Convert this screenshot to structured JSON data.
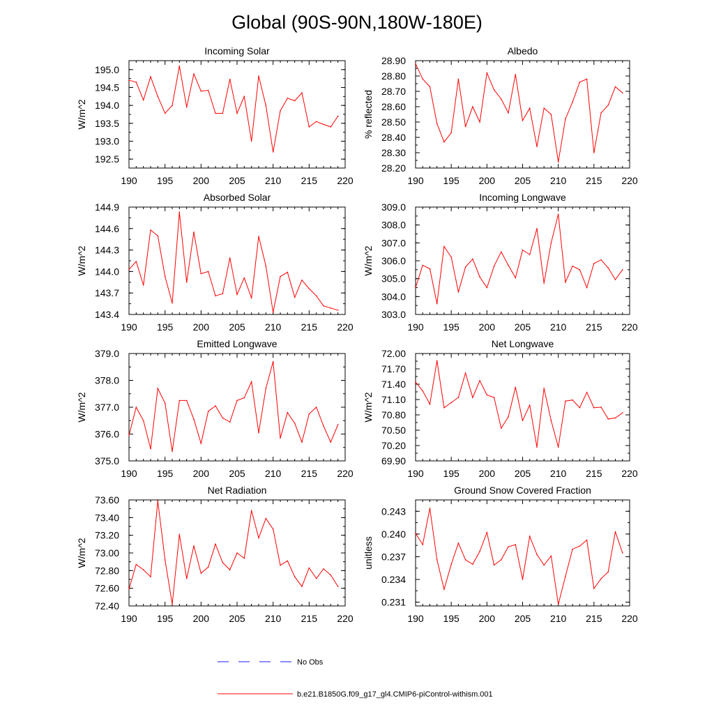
{
  "figure_title": "Global (90S-90N,180W-180E)",
  "legend": {
    "obs_label": "No Obs",
    "obs_color": "#1a1aff",
    "model_label": "b.e21.B1850G.f09_g17_gl4.CMIP6-piControl-withism.001",
    "model_color": "#ff0000"
  },
  "chart_data": [
    {
      "type": "line",
      "title": "Incoming Solar",
      "xlabel": "",
      "ylabel": "W/m^2",
      "xlim": [
        190,
        220
      ],
      "ylim": [
        192.25,
        195.25
      ],
      "xticks": [
        190,
        195,
        200,
        205,
        210,
        215,
        220
      ],
      "yticks": [
        192.5,
        193.0,
        193.5,
        194.0,
        194.5,
        195.0
      ],
      "ytick_labels": [
        "192.5",
        "193.0",
        "193.5",
        "194.0",
        "194.5",
        "195.0"
      ],
      "x": [
        190,
        191,
        192,
        193,
        194,
        195,
        196,
        197,
        198,
        199,
        200,
        201,
        202,
        203,
        204,
        205,
        206,
        207,
        208,
        209,
        210,
        211,
        212,
        213,
        214,
        215,
        216,
        217,
        218,
        219
      ],
      "values": [
        194.7,
        194.65,
        194.15,
        194.8,
        194.25,
        193.78,
        194.0,
        195.1,
        193.95,
        194.88,
        194.4,
        194.42,
        193.78,
        193.78,
        194.73,
        193.78,
        194.25,
        193.0,
        194.82,
        194.0,
        192.7,
        193.85,
        194.2,
        194.13,
        194.35,
        193.4,
        193.55,
        193.47,
        193.4,
        193.7
      ]
    },
    {
      "type": "line",
      "title": "Albedo",
      "xlabel": "",
      "ylabel": "% reflected",
      "xlim": [
        190,
        220
      ],
      "ylim": [
        28.2,
        28.9
      ],
      "xticks": [
        190,
        195,
        200,
        205,
        210,
        215,
        220
      ],
      "yticks": [
        28.2,
        28.3,
        28.4,
        28.5,
        28.6,
        28.7,
        28.8,
        28.9
      ],
      "ytick_labels": [
        "28.20",
        "28.30",
        "28.40",
        "28.50",
        "28.60",
        "28.70",
        "28.80",
        "28.90"
      ],
      "x": [
        190,
        191,
        192,
        193,
        194,
        195,
        196,
        197,
        198,
        199,
        200,
        201,
        202,
        203,
        204,
        205,
        206,
        207,
        208,
        209,
        210,
        211,
        212,
        213,
        214,
        215,
        216,
        217,
        218,
        219
      ],
      "values": [
        28.88,
        28.78,
        28.73,
        28.49,
        28.37,
        28.43,
        28.78,
        28.47,
        28.6,
        28.5,
        28.82,
        28.71,
        28.65,
        28.56,
        28.81,
        28.51,
        28.59,
        28.34,
        28.59,
        28.55,
        28.24,
        28.52,
        28.63,
        28.76,
        28.78,
        28.3,
        28.56,
        28.61,
        28.73,
        28.69
      ]
    },
    {
      "type": "line",
      "title": "Absorbed Solar",
      "xlabel": "",
      "ylabel": "W/m^2",
      "xlim": [
        190,
        220
      ],
      "ylim": [
        143.4,
        144.9
      ],
      "xticks": [
        190,
        195,
        200,
        205,
        210,
        215,
        220
      ],
      "yticks": [
        143.4,
        143.7,
        144.0,
        144.3,
        144.6,
        144.9
      ],
      "ytick_labels": [
        "143.4",
        "143.7",
        "144.0",
        "144.3",
        "144.6",
        "144.9"
      ],
      "x": [
        190,
        191,
        192,
        193,
        194,
        195,
        196,
        197,
        198,
        199,
        200,
        201,
        202,
        203,
        204,
        205,
        206,
        207,
        208,
        209,
        210,
        211,
        212,
        213,
        214,
        215,
        216,
        217,
        218,
        219
      ],
      "values": [
        144.03,
        144.14,
        143.81,
        144.58,
        144.5,
        143.93,
        143.56,
        144.83,
        143.85,
        144.55,
        143.97,
        144.0,
        143.66,
        143.69,
        144.19,
        143.68,
        143.91,
        143.63,
        144.49,
        144.08,
        143.43,
        143.93,
        143.99,
        143.64,
        143.88,
        143.76,
        143.66,
        143.52,
        143.49,
        143.46
      ]
    },
    {
      "type": "line",
      "title": "Incoming Longwave",
      "xlabel": "",
      "ylabel": "W/m^2",
      "xlim": [
        190,
        220
      ],
      "ylim": [
        303.0,
        309.0
      ],
      "xticks": [
        190,
        195,
        200,
        205,
        210,
        215,
        220
      ],
      "yticks": [
        303.0,
        304.0,
        305.0,
        306.0,
        307.0,
        308.0,
        309.0
      ],
      "ytick_labels": [
        "303.0",
        "304.0",
        "305.0",
        "306.0",
        "307.0",
        "308.0",
        "309.0"
      ],
      "x": [
        190,
        191,
        192,
        193,
        194,
        195,
        196,
        197,
        198,
        199,
        200,
        201,
        202,
        203,
        204,
        205,
        206,
        207,
        208,
        209,
        210,
        211,
        212,
        213,
        214,
        215,
        216,
        217,
        218,
        219
      ],
      "values": [
        304.5,
        305.75,
        305.55,
        303.6,
        306.8,
        306.2,
        304.25,
        305.65,
        306.1,
        305.1,
        304.5,
        305.7,
        306.5,
        305.75,
        305.05,
        306.6,
        306.35,
        307.8,
        304.75,
        307.0,
        308.6,
        304.8,
        305.7,
        305.5,
        304.5,
        305.85,
        306.05,
        305.6,
        304.95,
        305.5
      ]
    },
    {
      "type": "line",
      "title": "Emitted Longwave",
      "xlabel": "",
      "ylabel": "W/m^2",
      "xlim": [
        190,
        220
      ],
      "ylim": [
        375.0,
        379.0
      ],
      "xticks": [
        190,
        195,
        200,
        205,
        210,
        215,
        220
      ],
      "yticks": [
        375.0,
        376.0,
        377.0,
        378.0,
        379.0
      ],
      "ytick_labels": [
        "375.0",
        "376.0",
        "377.0",
        "378.0",
        "379.0"
      ],
      "x": [
        190,
        191,
        192,
        193,
        194,
        195,
        196,
        197,
        198,
        199,
        200,
        201,
        202,
        203,
        204,
        205,
        206,
        207,
        208,
        209,
        210,
        211,
        212,
        213,
        214,
        215,
        216,
        217,
        218,
        219
      ],
      "values": [
        375.95,
        377.0,
        376.5,
        375.45,
        377.7,
        377.15,
        375.35,
        377.25,
        377.25,
        376.55,
        375.65,
        376.85,
        377.05,
        376.6,
        376.45,
        377.25,
        377.35,
        377.95,
        376.05,
        377.7,
        378.7,
        375.85,
        376.8,
        376.4,
        375.7,
        376.75,
        377.0,
        376.3,
        375.7,
        376.35
      ]
    },
    {
      "type": "line",
      "title": "Net Longwave",
      "xlabel": "",
      "ylabel": "W/m^2",
      "xlim": [
        190,
        220
      ],
      "ylim": [
        69.9,
        72.0
      ],
      "xticks": [
        190,
        195,
        200,
        205,
        210,
        215,
        220
      ],
      "yticks": [
        69.9,
        70.2,
        70.5,
        70.8,
        71.1,
        71.4,
        71.7,
        72.0
      ],
      "ytick_labels": [
        "69.90",
        "70.20",
        "70.50",
        "70.80",
        "71.10",
        "71.40",
        "71.70",
        "72.00"
      ],
      "x": [
        190,
        191,
        192,
        193,
        194,
        195,
        196,
        197,
        198,
        199,
        200,
        201,
        202,
        203,
        204,
        205,
        206,
        207,
        208,
        209,
        210,
        211,
        212,
        213,
        214,
        215,
        216,
        217,
        218,
        219
      ],
      "values": [
        71.44,
        71.27,
        71.01,
        71.86,
        70.94,
        71.04,
        71.14,
        71.62,
        71.14,
        71.47,
        71.19,
        71.14,
        70.54,
        70.76,
        71.34,
        70.69,
        70.99,
        70.17,
        71.32,
        70.69,
        70.17,
        71.07,
        71.09,
        70.94,
        71.24,
        70.94,
        70.95,
        70.72,
        70.74,
        70.84
      ]
    },
    {
      "type": "line",
      "title": "Net Radiation",
      "xlabel": "",
      "ylabel": "W/m^2",
      "xlim": [
        190,
        220
      ],
      "ylim": [
        72.4,
        73.6
      ],
      "xticks": [
        190,
        195,
        200,
        205,
        210,
        215,
        220
      ],
      "yticks": [
        72.4,
        72.6,
        72.8,
        73.0,
        73.2,
        73.4,
        73.6
      ],
      "ytick_labels": [
        "72.40",
        "72.60",
        "72.80",
        "73.00",
        "73.20",
        "73.40",
        "73.60"
      ],
      "x": [
        190,
        191,
        192,
        193,
        194,
        195,
        196,
        197,
        198,
        199,
        200,
        201,
        202,
        203,
        204,
        205,
        206,
        207,
        208,
        209,
        210,
        211,
        212,
        213,
        214,
        215,
        216,
        217,
        218,
        219
      ],
      "values": [
        72.59,
        72.87,
        72.81,
        72.73,
        73.59,
        72.92,
        72.42,
        73.21,
        72.71,
        73.08,
        72.77,
        72.84,
        73.1,
        72.89,
        72.81,
        73.0,
        72.94,
        73.48,
        73.17,
        73.39,
        73.27,
        72.86,
        72.91,
        72.73,
        72.62,
        72.83,
        72.71,
        72.82,
        72.75,
        72.62
      ]
    },
    {
      "type": "line",
      "title": "Ground Snow Covered Fraction",
      "xlabel": "",
      "ylabel": "unitless",
      "xlim": [
        190,
        220
      ],
      "ylim": [
        0.2305,
        0.2445
      ],
      "xticks": [
        190,
        195,
        200,
        205,
        210,
        215,
        220
      ],
      "yticks": [
        0.231,
        0.234,
        0.237,
        0.24,
        0.243
      ],
      "ytick_labels": [
        "0.231",
        "0.234",
        "0.237",
        "0.240",
        "0.243"
      ],
      "x": [
        190,
        191,
        192,
        193,
        194,
        195,
        196,
        197,
        198,
        199,
        200,
        201,
        202,
        203,
        204,
        205,
        206,
        207,
        208,
        209,
        210,
        211,
        212,
        213,
        214,
        215,
        216,
        217,
        218,
        219
      ],
      "values": [
        0.2401,
        0.2386,
        0.2434,
        0.2366,
        0.2327,
        0.236,
        0.2388,
        0.2366,
        0.236,
        0.2377,
        0.2402,
        0.2359,
        0.2366,
        0.2383,
        0.2386,
        0.234,
        0.2397,
        0.2373,
        0.2359,
        0.2371,
        0.2307,
        0.2344,
        0.238,
        0.2384,
        0.2392,
        0.2328,
        0.2341,
        0.235,
        0.2403,
        0.2375
      ]
    }
  ]
}
